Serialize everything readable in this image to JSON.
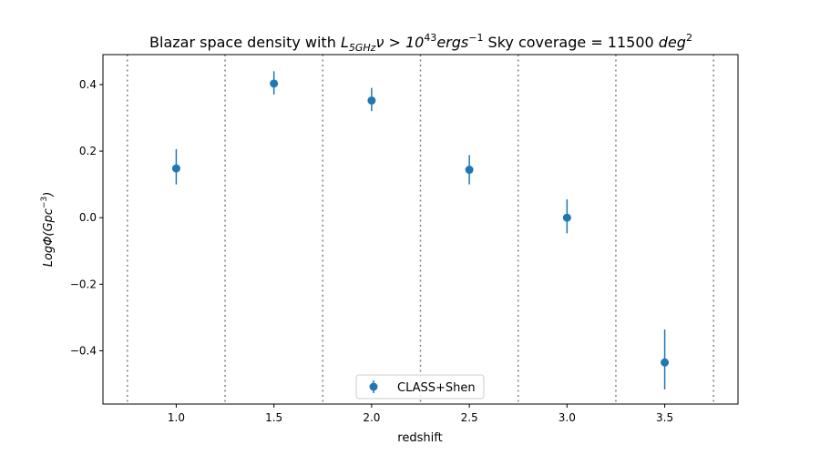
{
  "chart_data": {
    "type": "scatter",
    "title": {
      "part1": "Blazar space density with ",
      "lum_symbol": "L",
      "lum_subscript": "5GHz",
      "nu_gt": "ν > 10",
      "exponent": "43",
      "unit": "ergs",
      "unit_exponent": "−1",
      "coverage_label": " Sky coverage = 11500 ",
      "coverage_unit": "deg",
      "coverage_exponent": "2"
    },
    "xlabel": "redshift",
    "ylabel": {
      "base": "LogΦ(Gpc",
      "exponent": "−3",
      "close": ")"
    },
    "xlim": [
      0.625,
      3.875
    ],
    "ylim": [
      -0.56,
      0.49
    ],
    "xticks": [
      1.0,
      1.5,
      2.0,
      2.5,
      3.0,
      3.5
    ],
    "xtick_labels": [
      "1.0",
      "1.5",
      "2.0",
      "2.5",
      "3.0",
      "3.5"
    ],
    "yticks": [
      -0.4,
      -0.2,
      0.0,
      0.2,
      0.4
    ],
    "ytick_labels": [
      "−0.4",
      "−0.2",
      "0.0",
      "0.2",
      "0.4"
    ],
    "vlines": [
      0.75,
      1.25,
      1.75,
      2.25,
      2.75,
      3.25,
      3.75
    ],
    "series": [
      {
        "name": "CLASS+Shen",
        "color": "#1f77b4",
        "x": [
          1.0,
          1.5,
          2.0,
          2.5,
          3.0,
          3.5
        ],
        "y": [
          0.148,
          0.403,
          0.352,
          0.144,
          0.0,
          -0.435
        ],
        "yerr_low": [
          0.048,
          0.033,
          0.032,
          0.044,
          0.047,
          0.081
        ],
        "yerr_high": [
          0.058,
          0.037,
          0.038,
          0.044,
          0.055,
          0.099
        ]
      }
    ],
    "legend_placement": "lower-center",
    "grid": false
  }
}
